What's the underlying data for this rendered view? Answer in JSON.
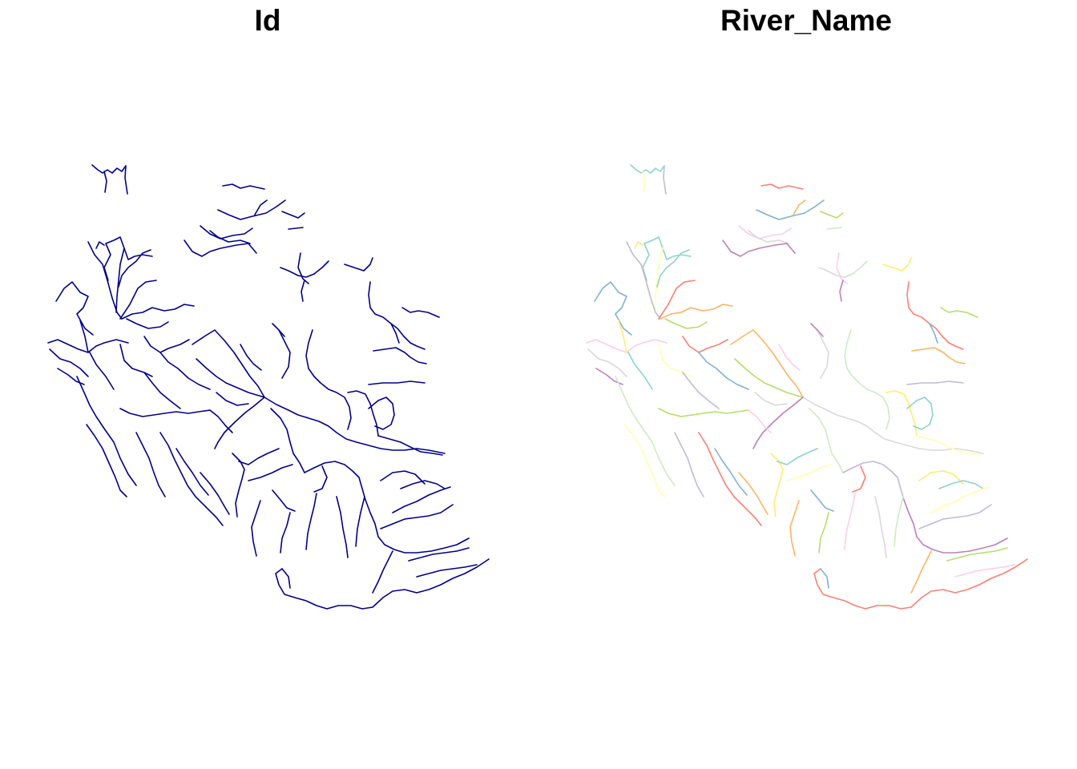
{
  "panels": [
    {
      "title": "Id",
      "layer": "rivers",
      "symbology": "single-color",
      "line_color": "#00008B"
    },
    {
      "title": "River_Name",
      "layer": "rivers",
      "symbology": "categorical",
      "palette": [
        "#8DD3C7",
        "#FFFFB3",
        "#BEBADA",
        "#FB8072",
        "#80B1D3",
        "#FDB462",
        "#B3DE69",
        "#FCCDE5",
        "#D9D9D9",
        "#BC80BD",
        "#CCEBC5",
        "#FFED6F"
      ]
    }
  ]
}
